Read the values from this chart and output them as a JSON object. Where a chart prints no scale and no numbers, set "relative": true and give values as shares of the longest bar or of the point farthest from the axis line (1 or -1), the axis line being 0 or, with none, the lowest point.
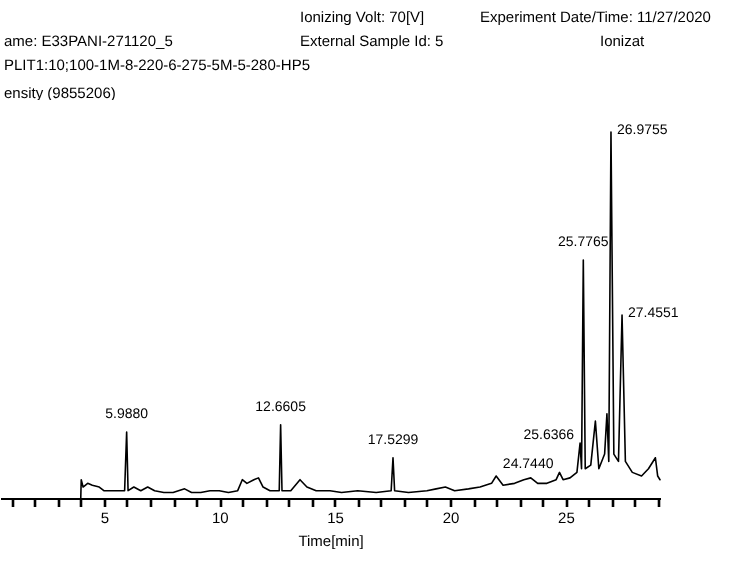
{
  "chart_data": {
    "type": "line",
    "relative": true,
    "color": "#000000",
    "marker": "none",
    "line_style": "solid",
    "ylabel": "ensity (9855206)",
    "xlabel": "Time[min]",
    "annotations": [
      "Ionizing Volt: 70[V]",
      "Experiment Date/Time: 11/27/2020",
      "ame: E33PANI-271120_5",
      "External Sample Id: 5",
      "Ionizat",
      "PLIT1:10;100-1M-8-220-6-275-5M-5-280-HP5",
      {
        "text": "5.9880",
        "x": 5.988,
        "y": 0.18
      },
      {
        "text": "12.6605",
        "x": 12.6605,
        "y": 0.2
      },
      {
        "text": "17.5299",
        "x": 17.5299,
        "y": 0.11
      },
      {
        "text": "24.7440",
        "x": 24.744,
        "y": 0.07
      },
      {
        "text": "25.6366",
        "x": 25.6366,
        "y": 0.15
      },
      {
        "text": "25.7765",
        "x": 25.7765,
        "y": 0.65
      },
      {
        "text": "26.9755",
        "x": 26.9755,
        "y": 1
      },
      {
        "text": "27.4551",
        "x": 27.4551,
        "y": 0.5
      }
    ],
    "xlim": [
      0.5,
      29.1
    ],
    "xticks": [
      {
        "value": 1,
        "label": null
      },
      {
        "value": 2,
        "label": null
      },
      {
        "value": 3,
        "label": null
      },
      {
        "value": 4,
        "label": null
      },
      5,
      {
        "value": 6,
        "label": null
      },
      {
        "value": 7,
        "label": null
      },
      {
        "value": 8,
        "label": null
      },
      {
        "value": 9,
        "label": null
      },
      10,
      {
        "value": 11,
        "label": null
      },
      {
        "value": 12,
        "label": null
      },
      {
        "value": 13,
        "label": null
      },
      {
        "value": 14,
        "label": null
      },
      15,
      {
        "value": 16,
        "label": null
      },
      {
        "value": 17,
        "label": null
      },
      {
        "value": 18,
        "label": null
      },
      {
        "value": 19,
        "label": null
      },
      20,
      {
        "value": 21,
        "label": null
      },
      {
        "value": 22,
        "label": null
      },
      {
        "value": 23,
        "label": null
      },
      {
        "value": 24,
        "label": null
      },
      25,
      {
        "value": 26,
        "label": null
      },
      {
        "value": 27,
        "label": null
      },
      {
        "value": 28,
        "label": null
      },
      {
        "value": 29,
        "label": null
      }
    ],
    "x": [
      4.0,
      4.02,
      4.1,
      4.3,
      4.5,
      4.8,
      5.0,
      5.5,
      5.9,
      5.988,
      6.05,
      6.3,
      6.6,
      6.9,
      7.2,
      7.6,
      8.0,
      8.5,
      8.8,
      9.2,
      9.6,
      10.0,
      10.4,
      10.8,
      11.0,
      11.2,
      11.5,
      11.7,
      11.9,
      12.2,
      12.6,
      12.6605,
      12.72,
      13.1,
      13.5,
      13.8,
      14.2,
      14.8,
      15.3,
      16.0,
      16.8,
      17.45,
      17.5299,
      17.6,
      18.2,
      19.0,
      19.4,
      19.8,
      20.2,
      20.8,
      21.3,
      21.8,
      22.0,
      22.3,
      22.8,
      23.2,
      23.5,
      23.8,
      24.2,
      24.6,
      24.744,
      24.9,
      25.2,
      25.5,
      25.6366,
      25.7,
      25.7765,
      25.86,
      26.1,
      26.3,
      26.45,
      26.7,
      26.8,
      26.88,
      26.9755,
      27.1,
      27.3,
      27.4551,
      27.6,
      27.9,
      28.3,
      28.6,
      28.9,
      29.0,
      29.1
    ],
    "values": [
      0,
      0.05,
      0.03,
      0.04,
      0.035,
      0.03,
      0.02,
      0.02,
      0.02,
      0.18,
      0.02,
      0.03,
      0.02,
      0.03,
      0.02,
      0.015,
      0.015,
      0.025,
      0.015,
      0.015,
      0.02,
      0.02,
      0.015,
      0.02,
      0.05,
      0.04,
      0.05,
      0.055,
      0.03,
      0.02,
      0.02,
      0.2,
      0.02,
      0.02,
      0.05,
      0.03,
      0.02,
      0.02,
      0.015,
      0.02,
      0.015,
      0.02,
      0.11,
      0.02,
      0.015,
      0.02,
      0.025,
      0.03,
      0.02,
      0.025,
      0.03,
      0.04,
      0.06,
      0.035,
      0.04,
      0.05,
      0.055,
      0.04,
      0.04,
      0.05,
      0.07,
      0.05,
      0.055,
      0.07,
      0.15,
      0.08,
      0.65,
      0.08,
      0.09,
      0.21,
      0.08,
      0.12,
      0.23,
      0.1,
      1,
      0.12,
      0.1,
      0.5,
      0.1,
      0.07,
      0.06,
      0.08,
      0.11,
      0.06,
      0.05
    ]
  }
}
